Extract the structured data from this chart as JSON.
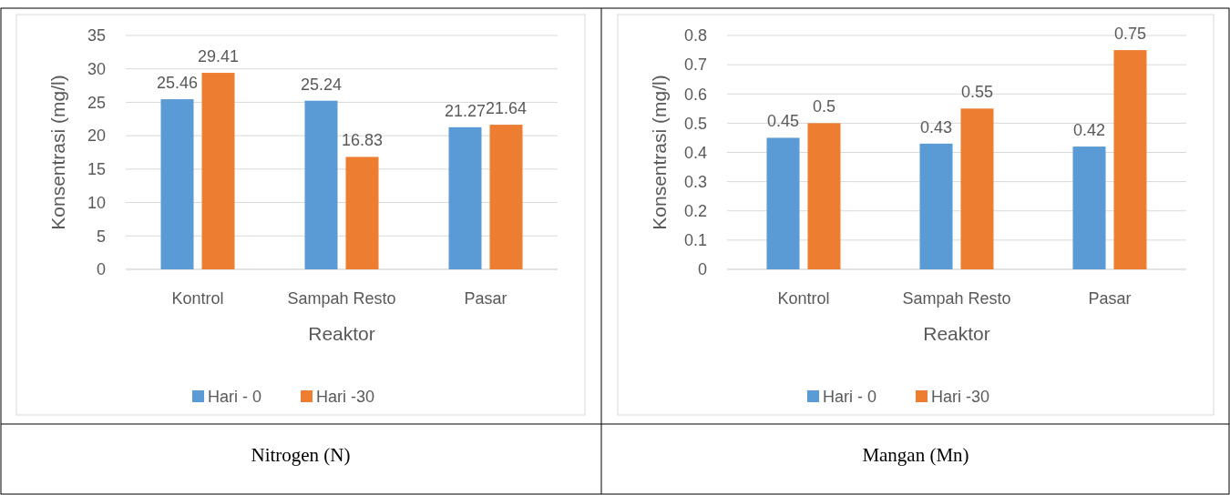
{
  "chart_data": [
    {
      "type": "bar",
      "title": "Nitrogen (N)",
      "xlabel": "Reaktor",
      "ylabel": "Konsentrasi (mg/l)",
      "categories": [
        "Kontrol",
        "Sampah Resto",
        "Pasar"
      ],
      "series": [
        {
          "name": "Hari - 0",
          "color": "#5b9bd5",
          "values": [
            25.46,
            25.24,
            21.27
          ]
        },
        {
          "name": "Hari -30",
          "color": "#ed7d31",
          "values": [
            29.41,
            16.83,
            21.64
          ]
        }
      ],
      "ylim": [
        0,
        35
      ],
      "yticks": [
        0,
        5,
        10,
        15,
        20,
        25,
        30,
        35
      ],
      "grid": "y",
      "legend": "bottom",
      "data_labels": true
    },
    {
      "type": "bar",
      "title": "Mangan (Mn)",
      "xlabel": "Reaktor",
      "ylabel": "Konsentrasi (mg/l)",
      "categories": [
        "Kontrol",
        "Sampah Resto",
        "Pasar"
      ],
      "series": [
        {
          "name": "Hari - 0",
          "color": "#5b9bd5",
          "values": [
            0.45,
            0.43,
            0.42
          ]
        },
        {
          "name": "Hari -30",
          "color": "#ed7d31",
          "values": [
            0.5,
            0.55,
            0.75
          ]
        }
      ],
      "ylim": [
        0,
        0.8
      ],
      "yticks": [
        0,
        0.1,
        0.2,
        0.3,
        0.4,
        0.5,
        0.6,
        0.7,
        0.8
      ],
      "grid": "y",
      "legend": "bottom",
      "data_labels": true
    }
  ]
}
